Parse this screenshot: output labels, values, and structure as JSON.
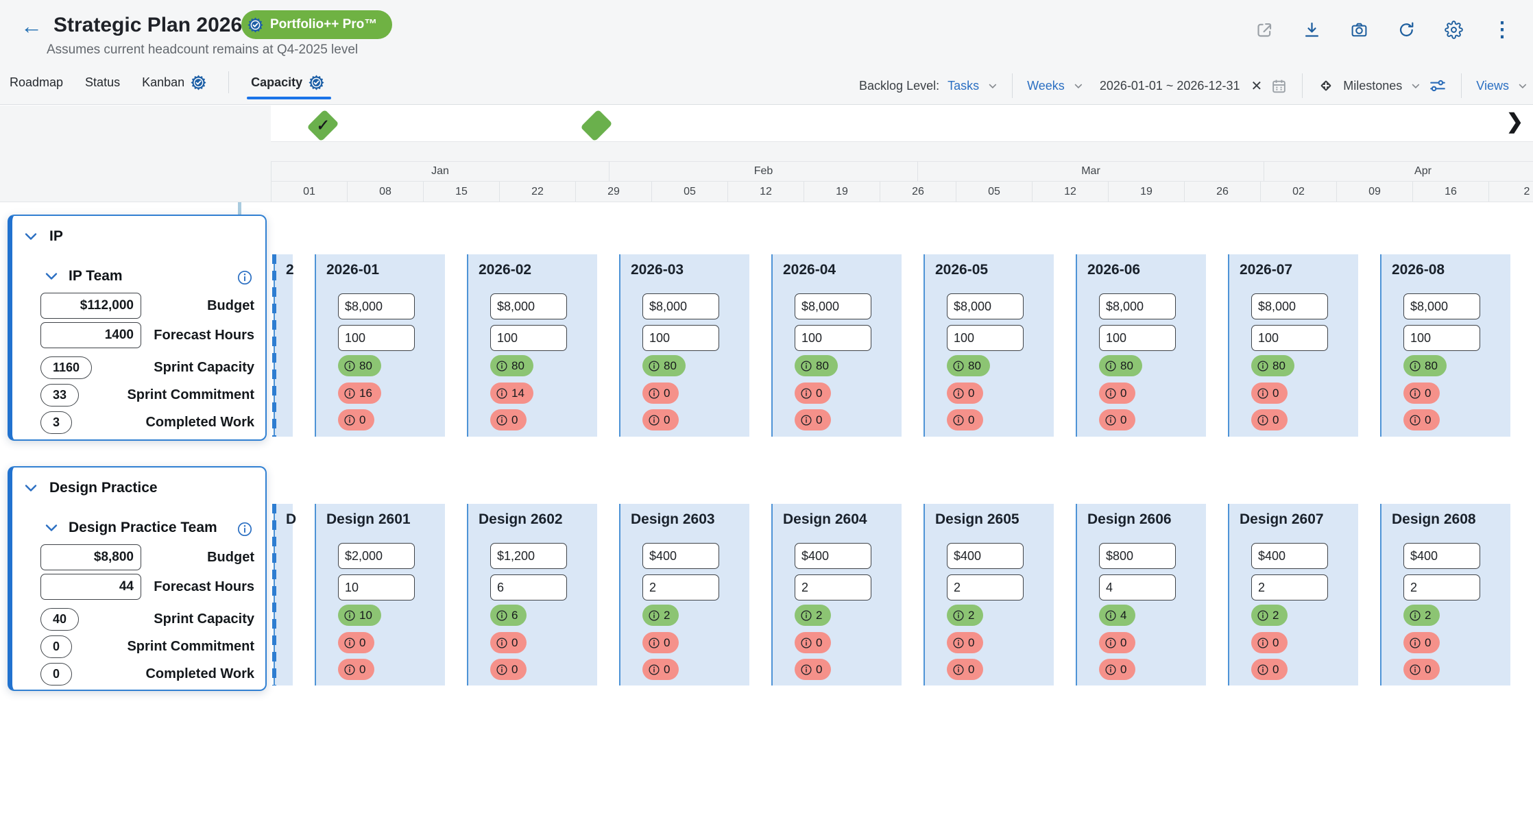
{
  "app": {
    "title": "Strategic Plan 2026",
    "badge": "Portfolio++ Pro™",
    "subtitle": "Assumes current headcount remains at Q4-2025 level"
  },
  "icons": {
    "back": "←",
    "more": "⋮",
    "close": "✕",
    "timeline_next": "❯",
    "check": "✓"
  },
  "tabs": {
    "items": [
      {
        "label": "Roadmap",
        "badged": false,
        "active": false
      },
      {
        "label": "Status",
        "badged": false,
        "active": false
      },
      {
        "label": "Kanban",
        "badged": true,
        "active": false
      },
      {
        "label": "Capacity",
        "badged": true,
        "active": true
      }
    ]
  },
  "toolbar": {
    "backlog_label": "Backlog Level:",
    "backlog_value": "Tasks",
    "range_mode": "Weeks",
    "date_range": "2026-01-01 ~ 2026-12-31",
    "milestones_label": "Milestones",
    "views_label": "Views"
  },
  "timeline": {
    "months": [
      "Jan",
      "Feb",
      "Mar",
      "Apr"
    ],
    "weeks": [
      "01",
      "08",
      "15",
      "22",
      "29",
      "05",
      "12",
      "19",
      "26",
      "05",
      "12",
      "19",
      "26",
      "02",
      "09",
      "16",
      "2"
    ],
    "milestones": [
      {
        "state": "completed"
      },
      {
        "state": "upcoming"
      }
    ]
  },
  "metric_labels": [
    "Budget",
    "Forecast Hours",
    "Sprint Capacity",
    "Sprint Commitment",
    "Completed Work"
  ],
  "groups": [
    {
      "name": "IP",
      "team": "IP Team",
      "partial_period_label": "2",
      "summary": {
        "budget": "$112,000",
        "forecast_hours": "1400",
        "sprint_capacity": "1160",
        "sprint_commitment": "33",
        "completed_work": "3"
      },
      "periods": [
        {
          "title": "2026-01",
          "budget": "$8,000",
          "forecast_hours": "100",
          "capacity": "80",
          "commitment": "16",
          "completed": "0"
        },
        {
          "title": "2026-02",
          "budget": "$8,000",
          "forecast_hours": "100",
          "capacity": "80",
          "commitment": "14",
          "completed": "0"
        },
        {
          "title": "2026-03",
          "budget": "$8,000",
          "forecast_hours": "100",
          "capacity": "80",
          "commitment": "0",
          "completed": "0"
        },
        {
          "title": "2026-04",
          "budget": "$8,000",
          "forecast_hours": "100",
          "capacity": "80",
          "commitment": "0",
          "completed": "0"
        },
        {
          "title": "2026-05",
          "budget": "$8,000",
          "forecast_hours": "100",
          "capacity": "80",
          "commitment": "0",
          "completed": "0"
        },
        {
          "title": "2026-06",
          "budget": "$8,000",
          "forecast_hours": "100",
          "capacity": "80",
          "commitment": "0",
          "completed": "0"
        },
        {
          "title": "2026-07",
          "budget": "$8,000",
          "forecast_hours": "100",
          "capacity": "80",
          "commitment": "0",
          "completed": "0"
        },
        {
          "title": "2026-08",
          "budget": "$8,000",
          "forecast_hours": "100",
          "capacity": "80",
          "commitment": "0",
          "completed": "0"
        }
      ]
    },
    {
      "name": "Design Practice",
      "team": "Design Practice Team",
      "partial_period_label": "D",
      "summary": {
        "budget": "$8,800",
        "forecast_hours": "44",
        "sprint_capacity": "40",
        "sprint_commitment": "0",
        "completed_work": "0"
      },
      "periods": [
        {
          "title": "Design 2601",
          "budget": "$2,000",
          "forecast_hours": "10",
          "capacity": "10",
          "commitment": "0",
          "completed": "0"
        },
        {
          "title": "Design 2602",
          "budget": "$1,200",
          "forecast_hours": "6",
          "capacity": "6",
          "commitment": "0",
          "completed": "0"
        },
        {
          "title": "Design 2603",
          "budget": "$400",
          "forecast_hours": "2",
          "capacity": "2",
          "commitment": "0",
          "completed": "0"
        },
        {
          "title": "Design 2604",
          "budget": "$400",
          "forecast_hours": "2",
          "capacity": "2",
          "commitment": "0",
          "completed": "0"
        },
        {
          "title": "Design 2605",
          "budget": "$400",
          "forecast_hours": "2",
          "capacity": "2",
          "commitment": "0",
          "completed": "0"
        },
        {
          "title": "Design 2606",
          "budget": "$800",
          "forecast_hours": "4",
          "capacity": "4",
          "commitment": "0",
          "completed": "0"
        },
        {
          "title": "Design 2607",
          "budget": "$400",
          "forecast_hours": "2",
          "capacity": "2",
          "commitment": "0",
          "completed": "0"
        },
        {
          "title": "Design 2608",
          "budget": "$400",
          "forecast_hours": "2",
          "capacity": "2",
          "commitment": "0",
          "completed": "0"
        }
      ]
    }
  ],
  "colors": {
    "accent_blue": "#2b6fc2",
    "tab_underline": "#1a73e8",
    "badge_green": "#6fb243",
    "milestone_green": "#6ab04c",
    "period_card_blue": "#dae7f6",
    "pill_green": "#8cc473",
    "pill_red": "#f5918a",
    "today_line_blue": "#2f7ed2"
  }
}
